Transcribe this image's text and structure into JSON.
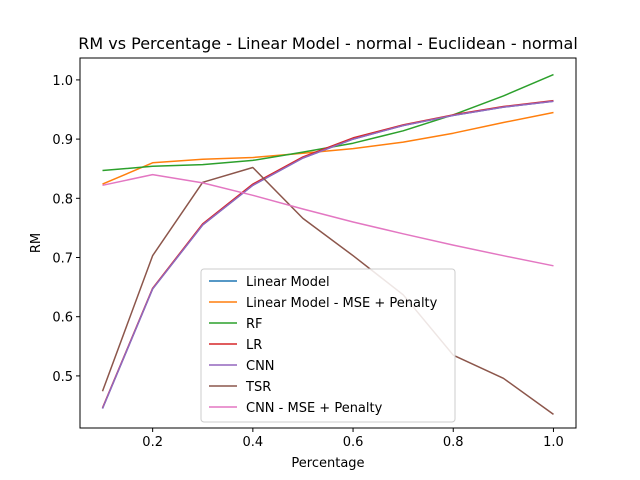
{
  "chart_data": {
    "type": "line",
    "title": "RM vs Percentage - Linear Model - normal - Euclidean - normal",
    "xlabel": "Percentage",
    "ylabel": "RM",
    "xlim": [
      0.055,
      1.045
    ],
    "ylim": [
      0.412,
      1.037
    ],
    "x_ticks": [
      0.2,
      0.4,
      0.6,
      0.8,
      1.0
    ],
    "x_tick_labels": [
      "0.2",
      "0.4",
      "0.6",
      "0.8",
      "1.0"
    ],
    "y_ticks": [
      0.5,
      0.6,
      0.7,
      0.8,
      0.9,
      1.0
    ],
    "y_tick_labels": [
      "0.5",
      "0.6",
      "0.7",
      "0.8",
      "0.9",
      "1.0"
    ],
    "grid": false,
    "legend_position": "lower-center",
    "x": [
      0.1,
      0.2,
      0.3,
      0.4,
      0.5,
      0.6,
      0.7,
      0.8,
      0.9,
      1.0
    ],
    "series": [
      {
        "name": "Linear Model",
        "color": "#1f77b4",
        "values": [
          0.445,
          0.647,
          0.755,
          0.822,
          0.868,
          0.9,
          0.923,
          0.94,
          0.954,
          0.964
        ]
      },
      {
        "name": "Linear Model - MSE + Penalty",
        "color": "#ff7f0e",
        "values": [
          0.824,
          0.86,
          0.866,
          0.869,
          0.876,
          0.884,
          0.895,
          0.91,
          0.928,
          0.945
        ]
      },
      {
        "name": "RF",
        "color": "#2ca02c",
        "values": [
          0.847,
          0.854,
          0.857,
          0.864,
          0.878,
          0.893,
          0.914,
          0.941,
          0.973,
          1.009
        ]
      },
      {
        "name": "LR",
        "color": "#d62728",
        "values": [
          0.446,
          0.648,
          0.757,
          0.824,
          0.87,
          0.902,
          0.924,
          0.941,
          0.955,
          0.965
        ]
      },
      {
        "name": "CNN",
        "color": "#9467bd",
        "values": [
          0.445,
          0.647,
          0.755,
          0.822,
          0.868,
          0.9,
          0.923,
          0.94,
          0.954,
          0.964
        ]
      },
      {
        "name": "TSR",
        "color": "#8c564b",
        "values": [
          0.474,
          0.703,
          0.827,
          0.852,
          0.766,
          0.703,
          0.637,
          0.535,
          0.496,
          0.435
        ]
      },
      {
        "name": "CNN - MSE + Penalty",
        "color": "#e377c2",
        "values": [
          0.822,
          0.84,
          0.826,
          0.805,
          0.782,
          0.76,
          0.74,
          0.721,
          0.703,
          0.686
        ]
      }
    ]
  }
}
